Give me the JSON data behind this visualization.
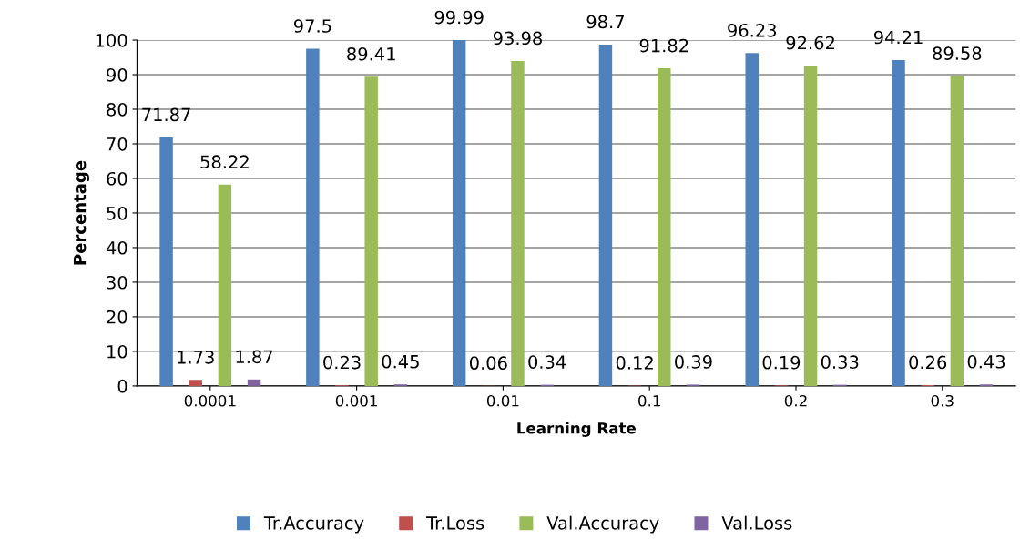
{
  "chart_data": {
    "type": "bar",
    "xlabel": "Learning Rate",
    "ylabel": "Percentage",
    "categories": [
      "0.0001",
      "0.001",
      "0.01",
      "0.1",
      "0.2",
      "0.3"
    ],
    "series": [
      {
        "name": "Tr.Accuracy",
        "color": "#4f81bd",
        "values": [
          71.87,
          97.5,
          99.99,
          98.7,
          96.23,
          94.21
        ]
      },
      {
        "name": "Tr.Loss",
        "color": "#c0504d",
        "values": [
          1.73,
          0.23,
          0.06,
          0.12,
          0.19,
          0.26
        ]
      },
      {
        "name": "Val.Accuracy",
        "color": "#9bbb59",
        "values": [
          58.22,
          89.41,
          93.98,
          91.82,
          92.62,
          89.58
        ]
      },
      {
        "name": "Val.Loss",
        "color": "#8064a2",
        "values": [
          1.87,
          0.45,
          0.34,
          0.39,
          0.33,
          0.43
        ]
      }
    ],
    "ylim": [
      0,
      100
    ],
    "yticks": [
      0,
      10,
      20,
      30,
      40,
      50,
      60,
      70,
      80,
      90,
      100
    ],
    "grid": "y",
    "legend": "bottom",
    "data_labels": true
  }
}
